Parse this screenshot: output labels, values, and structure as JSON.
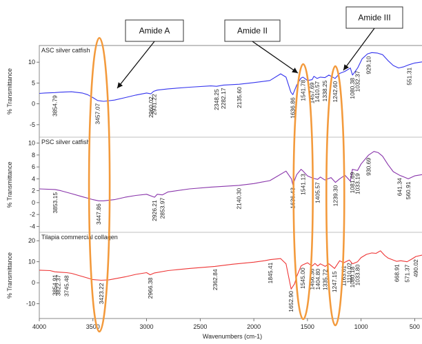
{
  "chart_data": {
    "type": "line",
    "xlabel": "Wavenumbers (cm-1)",
    "x_ticks": [
      4000,
      3500,
      3000,
      2500,
      2000,
      1500,
      1000,
      500
    ],
    "xlim": [
      4000,
      400
    ],
    "panels": [
      {
        "title": "ASC silver catfish",
        "ylabel": "% Transmittance",
        "y_ticks": [
          10,
          5,
          0,
          -5
        ],
        "ylim": [
          -8,
          14
        ],
        "color": "#3333ee",
        "points": [
          [
            4000,
            2.5
          ],
          [
            3950,
            2.6
          ],
          [
            3854,
            2.7
          ],
          [
            3800,
            2.8
          ],
          [
            3700,
            2.9
          ],
          [
            3600,
            2.6
          ],
          [
            3550,
            2.2
          ],
          [
            3500,
            1.5
          ],
          [
            3457,
            0.8
          ],
          [
            3400,
            0.6
          ],
          [
            3300,
            0.9
          ],
          [
            3200,
            1.5
          ],
          [
            3100,
            2.1
          ],
          [
            3000,
            2.6
          ],
          [
            2960,
            2.4
          ],
          [
            2935,
            3.0
          ],
          [
            2900,
            3.3
          ],
          [
            2800,
            3.6
          ],
          [
            2600,
            4.0
          ],
          [
            2400,
            4.3
          ],
          [
            2348,
            4.2
          ],
          [
            2282,
            4.5
          ],
          [
            2135,
            4.7
          ],
          [
            2000,
            5.1
          ],
          [
            1850,
            5.6
          ],
          [
            1750,
            7.2
          ],
          [
            1700,
            6.4
          ],
          [
            1655,
            2.8
          ],
          [
            1636,
            2.2
          ],
          [
            1600,
            4.5
          ],
          [
            1560,
            6.2
          ],
          [
            1541,
            6.4
          ],
          [
            1500,
            5.6
          ],
          [
            1457,
            5.8
          ],
          [
            1440,
            6.6
          ],
          [
            1410,
            6.1
          ],
          [
            1380,
            6.4
          ],
          [
            1338,
            6.3
          ],
          [
            1300,
            6.9
          ],
          [
            1242,
            6.1
          ],
          [
            1200,
            7.3
          ],
          [
            1150,
            7.8
          ],
          [
            1100,
            8.6
          ],
          [
            1080,
            6.9
          ],
          [
            1032,
            8.6
          ],
          [
            990,
            10.8
          ],
          [
            940,
            12.0
          ],
          [
            900,
            12.3
          ],
          [
            850,
            12.2
          ],
          [
            800,
            11.8
          ],
          [
            750,
            10.4
          ],
          [
            700,
            9.2
          ],
          [
            650,
            8.6
          ],
          [
            600,
            8.9
          ],
          [
            551,
            9.4
          ],
          [
            500,
            9.8
          ],
          [
            400,
            10.2
          ]
        ],
        "peaks": [
          {
            "label": "3854.79",
            "x": 3854
          },
          {
            "label": "3457.07",
            "x": 3457
          },
          {
            "label": "2960.02",
            "x": 2960
          },
          {
            "label": "2931.22",
            "x": 2931
          },
          {
            "label": "2348.25",
            "x": 2348
          },
          {
            "label": "2282.17",
            "x": 2282
          },
          {
            "label": "2135.60",
            "x": 2135
          },
          {
            "label": "1636.86",
            "x": 1636
          },
          {
            "label": "1541.78",
            "x": 1541
          },
          {
            "label": "1457.69",
            "x": 1457
          },
          {
            "label": "1410.57",
            "x": 1410
          },
          {
            "label": "1338.25",
            "x": 1338
          },
          {
            "label": "1242.60",
            "x": 1242
          },
          {
            "label": "1080.38",
            "x": 1080
          },
          {
            "label": "1032.37",
            "x": 1032
          },
          {
            "label": "929.10",
            "x": 929
          },
          {
            "label": "551.31",
            "x": 551
          }
        ]
      },
      {
        "title": "PSC silver catfish",
        "ylabel": "% Transmittance",
        "y_ticks": [
          10,
          8,
          6,
          4,
          2,
          0,
          -2,
          -4
        ],
        "ylim": [
          -5,
          11
        ],
        "color": "#8833aa",
        "points": [
          [
            4000,
            2.3
          ],
          [
            3853,
            2.2
          ],
          [
            3800,
            2.0
          ],
          [
            3700,
            1.5
          ],
          [
            3600,
            1.0
          ],
          [
            3500,
            0.5
          ],
          [
            3447,
            0.3
          ],
          [
            3400,
            0.3
          ],
          [
            3300,
            0.5
          ],
          [
            3200,
            0.9
          ],
          [
            3100,
            1.2
          ],
          [
            3000,
            1.4
          ],
          [
            2926,
            0.9
          ],
          [
            2900,
            1.4
          ],
          [
            2853,
            1.3
          ],
          [
            2800,
            1.8
          ],
          [
            2600,
            2.3
          ],
          [
            2400,
            2.6
          ],
          [
            2140,
            2.9
          ],
          [
            2000,
            3.2
          ],
          [
            1850,
            3.7
          ],
          [
            1700,
            5.3
          ],
          [
            1650,
            4.0
          ],
          [
            1636,
            3.0
          ],
          [
            1600,
            4.7
          ],
          [
            1560,
            5.6
          ],
          [
            1541,
            5.3
          ],
          [
            1500,
            4.5
          ],
          [
            1450,
            4.1
          ],
          [
            1405,
            3.9
          ],
          [
            1380,
            4.3
          ],
          [
            1338,
            3.8
          ],
          [
            1280,
            4.2
          ],
          [
            1239,
            3.4
          ],
          [
            1200,
            4.0
          ],
          [
            1150,
            4.6
          ],
          [
            1100,
            3.6
          ],
          [
            1081,
            5.6
          ],
          [
            1033,
            5.4
          ],
          [
            1000,
            6.5
          ],
          [
            930,
            8.0
          ],
          [
            880,
            8.6
          ],
          [
            840,
            8.4
          ],
          [
            800,
            7.8
          ],
          [
            750,
            6.4
          ],
          [
            700,
            5.2
          ],
          [
            641,
            4.6
          ],
          [
            600,
            4.3
          ],
          [
            560,
            4.0
          ],
          [
            500,
            4.5
          ],
          [
            400,
            4.8
          ]
        ],
        "peaks": [
          {
            "label": "3853.15",
            "x": 3853
          },
          {
            "label": "3447.86",
            "x": 3447
          },
          {
            "label": "2926.21",
            "x": 2926
          },
          {
            "label": "2853.97",
            "x": 2853
          },
          {
            "label": "2140.30",
            "x": 2140
          },
          {
            "label": "1636.43",
            "x": 1636
          },
          {
            "label": "1541.13",
            "x": 1541
          },
          {
            "label": "1405.57",
            "x": 1405
          },
          {
            "label": "1239.30",
            "x": 1239
          },
          {
            "label": "1081.69",
            "x": 1081
          },
          {
            "label": "1033.19",
            "x": 1033
          },
          {
            "label": "930.69",
            "x": 930
          },
          {
            "label": "641.34",
            "x": 641
          },
          {
            "label": "560.91",
            "x": 560
          }
        ]
      },
      {
        "title": "Tilapia commercial collagen",
        "ylabel": "% Transmittance",
        "y_ticks": [
          20,
          10,
          0,
          -10
        ],
        "ylim": [
          -17,
          24
        ],
        "color": "#ee3333",
        "points": [
          [
            4000,
            6.0
          ],
          [
            3900,
            5.8
          ],
          [
            3854,
            5.2
          ],
          [
            3800,
            5.0
          ],
          [
            3745,
            4.8
          ],
          [
            3700,
            4.5
          ],
          [
            3600,
            3.0
          ],
          [
            3500,
            1.5
          ],
          [
            3423,
            1.2
          ],
          [
            3350,
            1.4
          ],
          [
            3200,
            2.8
          ],
          [
            3100,
            4.0
          ],
          [
            3000,
            4.8
          ],
          [
            2966,
            3.8
          ],
          [
            2930,
            4.6
          ],
          [
            2800,
            5.8
          ],
          [
            2600,
            6.8
          ],
          [
            2362,
            7.8
          ],
          [
            2200,
            8.8
          ],
          [
            2000,
            9.8
          ],
          [
            1900,
            10.5
          ],
          [
            1845,
            11.0
          ],
          [
            1750,
            11.5
          ],
          [
            1700,
            9.0
          ],
          [
            1652,
            -3.0
          ],
          [
            1620,
            -0.5
          ],
          [
            1600,
            3.0
          ],
          [
            1560,
            8.0
          ],
          [
            1545,
            8.5
          ],
          [
            1500,
            9.5
          ],
          [
            1456,
            8.0
          ],
          [
            1430,
            9.2
          ],
          [
            1404,
            8.0
          ],
          [
            1380,
            9.0
          ],
          [
            1335,
            7.8
          ],
          [
            1300,
            9.0
          ],
          [
            1247,
            6.8
          ],
          [
            1200,
            10.5
          ],
          [
            1163,
            9.5
          ],
          [
            1110,
            10.8
          ],
          [
            1080,
            9.0
          ],
          [
            1033,
            10.0
          ],
          [
            1000,
            12.0
          ],
          [
            950,
            13.5
          ],
          [
            900,
            14.2
          ],
          [
            860,
            14.0
          ],
          [
            820,
            15.2
          ],
          [
            780,
            13.0
          ],
          [
            750,
            11.8
          ],
          [
            700,
            10.8
          ],
          [
            668,
            10.2
          ],
          [
            630,
            10.5
          ],
          [
            571,
            10.0
          ],
          [
            520,
            11.5
          ],
          [
            490,
            12.5
          ],
          [
            400,
            13.5
          ]
        ],
        "peaks": [
          {
            "label": "3854.91",
            "x": 3854
          },
          {
            "label": "3822.37",
            "x": 3822
          },
          {
            "label": "3745.48",
            "x": 3745
          },
          {
            "label": "3423.22",
            "x": 3423
          },
          {
            "label": "2966.38",
            "x": 2966
          },
          {
            "label": "2362.84",
            "x": 2362
          },
          {
            "label": "1845.41",
            "x": 1845
          },
          {
            "label": "1652.90",
            "x": 1652
          },
          {
            "label": "1545.00",
            "x": 1545
          },
          {
            "label": "1456.36",
            "x": 1456
          },
          {
            "label": "1404.80",
            "x": 1404
          },
          {
            "label": "1335.72",
            "x": 1335
          },
          {
            "label": "1247.15",
            "x": 1247
          },
          {
            "label": "1163.61",
            "x": 1163
          },
          {
            "label": "1110.02",
            "x": 1110
          },
          {
            "label": "1080.18",
            "x": 1080
          },
          {
            "label": "1033.80",
            "x": 1033
          },
          {
            "label": "668.91",
            "x": 668
          },
          {
            "label": "571.37",
            "x": 571
          },
          {
            "label": "490.02",
            "x": 490
          }
        ]
      }
    ],
    "annotations": [
      {
        "label": "Amide A",
        "band_x": 3440
      },
      {
        "label": "Amide II",
        "band_x": 1540
      },
      {
        "label": "Amide III",
        "band_x": 1240
      }
    ],
    "grid": false
  }
}
